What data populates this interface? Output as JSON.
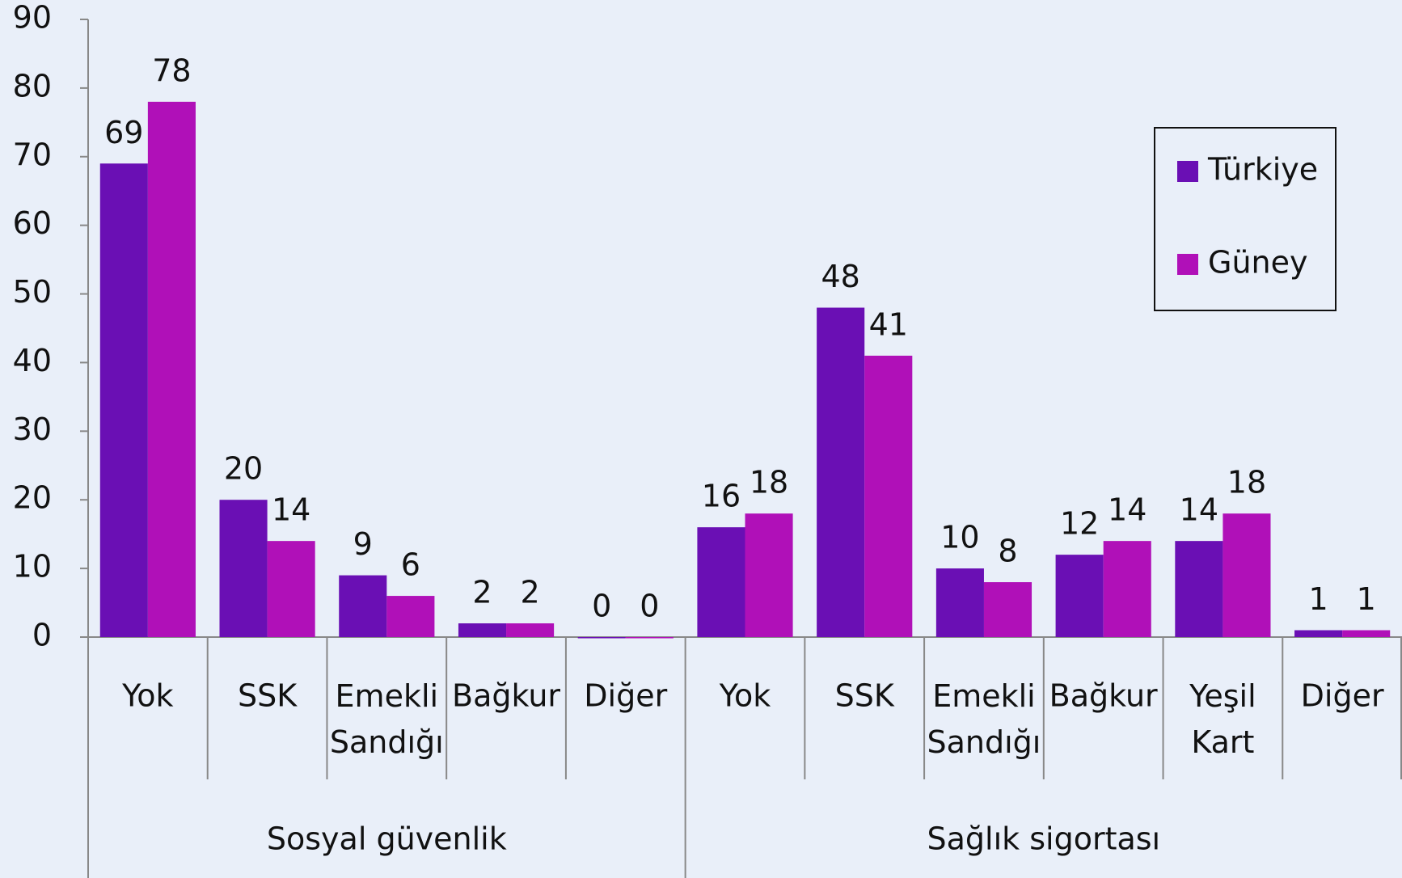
{
  "chart_data": {
    "type": "bar",
    "groups": [
      {
        "label": "Sosyal güvenlik",
        "categories": [
          "Yok",
          "SSK",
          "Emekli Sandığı",
          "Bağkur",
          "Diğer"
        ]
      },
      {
        "label": "Sağlık sigortası",
        "categories": [
          "Yok",
          "SSK",
          "Emekli Sandığı",
          "Bağkur",
          "Yeşil Kart",
          "Diğer"
        ]
      }
    ],
    "series": [
      {
        "name": "Türkiye",
        "color": "#6a0fb4",
        "values": [
          69,
          20,
          9,
          2,
          0,
          16,
          48,
          10,
          12,
          14,
          1
        ]
      },
      {
        "name": "Güney",
        "color": "#b010b8",
        "values": [
          78,
          14,
          6,
          2,
          0,
          18,
          41,
          8,
          14,
          18,
          1
        ]
      }
    ],
    "ylim": [
      0,
      90
    ],
    "yticks": [
      0,
      10,
      20,
      30,
      40,
      50,
      60,
      70,
      80,
      90
    ],
    "legend": "upper-right"
  }
}
